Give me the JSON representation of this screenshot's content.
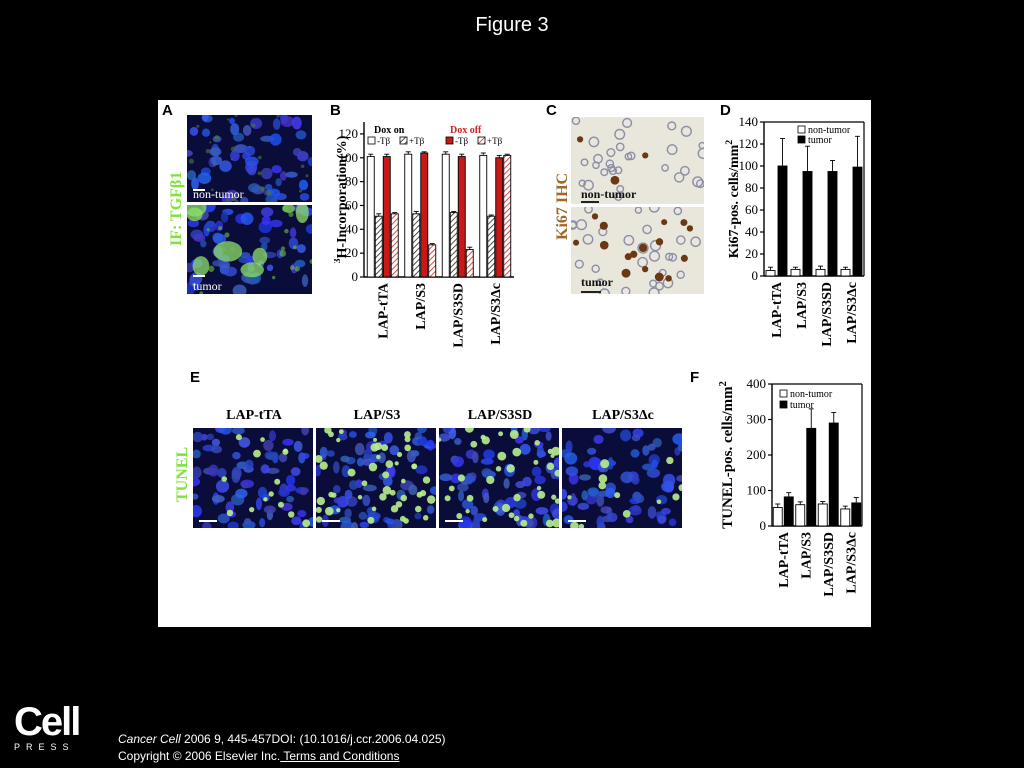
{
  "slide": {
    "title": "Figure 3"
  },
  "panels": {
    "A": {
      "letter": "A",
      "side_label": "IF: TGFβ1",
      "images": [
        "non-tumor",
        "tumor"
      ]
    },
    "B": {
      "letter": "B"
    },
    "C": {
      "letter": "C",
      "side_label": "Ki67 IHC",
      "images": [
        "non-tumor",
        "tumor"
      ]
    },
    "D": {
      "letter": "D"
    },
    "E": {
      "letter": "E",
      "side_label": "TUNEL",
      "columns": [
        "LAP-tTA",
        "LAP/S3",
        "LAP/S3SD",
        "LAP/S3Δc"
      ]
    },
    "F": {
      "letter": "F"
    }
  },
  "chart_data": [
    {
      "id": "B",
      "type": "bar",
      "ylabel": "3H-Incorporation(%)",
      "ylabel_sup": "3",
      "ylabel_rest": "H-Incorporation(%)",
      "ylim": [
        0,
        130
      ],
      "yticks": [
        0,
        20,
        40,
        60,
        80,
        100,
        120
      ],
      "categories": [
        "LAP-tTA",
        "LAP/S3",
        "LAP/S3SD",
        "LAP/S3Δc"
      ],
      "legend_groups": [
        {
          "title": "Dox on",
          "title_color": "#000000",
          "entries": [
            "-Tβ",
            "+Tβ"
          ]
        },
        {
          "title": "Dox off",
          "title_color": "#d32020",
          "entries": [
            "-Tβ",
            "+Tβ"
          ]
        }
      ],
      "series": [
        {
          "name": "Dox on -Tβ",
          "fill": "#ffffff",
          "pattern": "none",
          "values": [
            101,
            103,
            103,
            102
          ],
          "errors": [
            2,
            2,
            2,
            2
          ]
        },
        {
          "name": "Dox on +Tβ",
          "fill": "#ffffff",
          "pattern": "hatch-dark",
          "values": [
            51,
            53,
            54,
            51
          ],
          "errors": [
            2,
            2,
            1,
            1
          ]
        },
        {
          "name": "Dox off -Tβ",
          "fill": "#c81818",
          "pattern": "none",
          "values": [
            101,
            104,
            101,
            100
          ],
          "errors": [
            2,
            1,
            2,
            2
          ]
        },
        {
          "name": "Dox off +Tβ",
          "fill": "#ffffff",
          "pattern": "hatch-red",
          "values": [
            53,
            27,
            23,
            102
          ],
          "errors": [
            1,
            1,
            2,
            1
          ]
        }
      ]
    },
    {
      "id": "D",
      "type": "bar",
      "ylabel": "Ki67-pos. cells/mm2",
      "ylabel_main": "Ki67-pos. cells/mm",
      "ylabel_sup": "2",
      "ylim": [
        0,
        140
      ],
      "yticks": [
        0,
        20,
        40,
        60,
        80,
        100,
        120,
        140
      ],
      "categories": [
        "LAP-tTA",
        "LAP/S3",
        "LAP/S3SD",
        "LAP/S3Δc"
      ],
      "series": [
        {
          "name": "non-tumor",
          "fill": "#ffffff",
          "values": [
            5,
            6,
            6,
            6
          ],
          "errors": [
            3,
            2,
            3,
            2
          ]
        },
        {
          "name": "tumor",
          "fill": "#000000",
          "values": [
            100,
            95,
            95,
            99
          ],
          "errors": [
            25,
            23,
            10,
            28
          ]
        }
      ],
      "legend": "top-right"
    },
    {
      "id": "F",
      "type": "bar",
      "ylabel": "TUNEL-pos. cells/mm2",
      "ylabel_main": "TUNEL-pos. cells/mm",
      "ylabel_sup": "2",
      "ylim": [
        0,
        400
      ],
      "yticks": [
        0,
        100,
        200,
        300,
        400
      ],
      "categories": [
        "LAP-tTA",
        "LAP/S3",
        "LAP/S3SD",
        "LAP/S3Δc"
      ],
      "series": [
        {
          "name": "non-tumor",
          "fill": "#ffffff",
          "values": [
            52,
            60,
            62,
            48
          ],
          "errors": [
            10,
            8,
            7,
            8
          ]
        },
        {
          "name": "tumor",
          "fill": "#000000",
          "values": [
            82,
            275,
            290,
            65
          ],
          "errors": [
            12,
            55,
            30,
            15
          ]
        }
      ],
      "legend": "top-right"
    }
  ],
  "footer": {
    "logo_big": "Cell",
    "logo_small": "PRESS",
    "journal": "Cancer Cell",
    "citation_rest": " 2006 9, 445-457DOI: (10.1016/j.ccr.2006.04.025)",
    "copyright": "Copyright © 2006 Elsevier Inc.",
    "terms_link": " Terms and Conditions"
  }
}
